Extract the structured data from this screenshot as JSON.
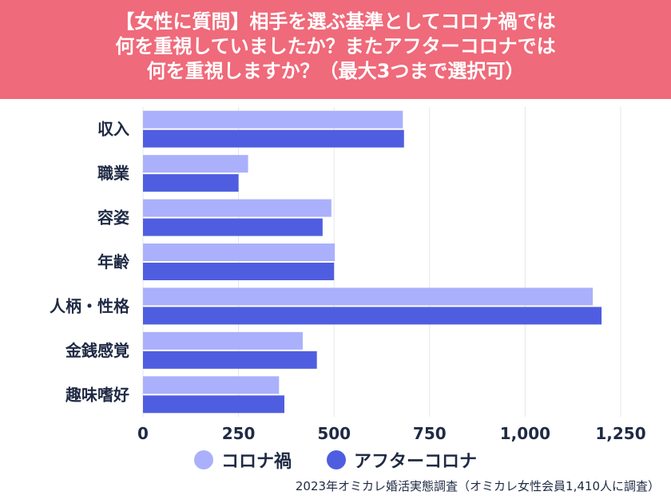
{
  "title_lines": [
    "【女性に質問】相手を選ぶ基準としてコロナ禍では",
    "何を重視していましたか？またアフターコロナでは",
    "何を重視しますか？（最大3つまで選択可）"
  ],
  "source": "2023年オミカレ婚活実態調査（オミカレ女性会員1,410人に調査）",
  "colors": {
    "header_bg": "#ef6a7a",
    "series_before": "#aab0fb",
    "series_after": "#4f5ee0",
    "grid": "#e6e6e6",
    "text": "#1f2a44"
  },
  "chart_data": {
    "type": "bar",
    "orientation": "horizontal",
    "categories": [
      "収入",
      "職業",
      "容姿",
      "年齢",
      "人柄・性格",
      "金銭感覚",
      "趣味嗜好"
    ],
    "series": [
      {
        "name": "コロナ禍",
        "values": [
          680,
          275,
          493,
          502,
          1177,
          418,
          356
        ]
      },
      {
        "name": "アフターコロナ",
        "values": [
          683,
          250,
          470,
          500,
          1200,
          455,
          370
        ]
      }
    ],
    "xlim": [
      0,
      1250
    ],
    "xticks": [
      0,
      250,
      500,
      750,
      1000,
      1250
    ],
    "xtick_labels": [
      "0",
      "250",
      "500",
      "750",
      "1,000",
      "1,250"
    ],
    "grid": true,
    "legend_position": "bottom"
  }
}
